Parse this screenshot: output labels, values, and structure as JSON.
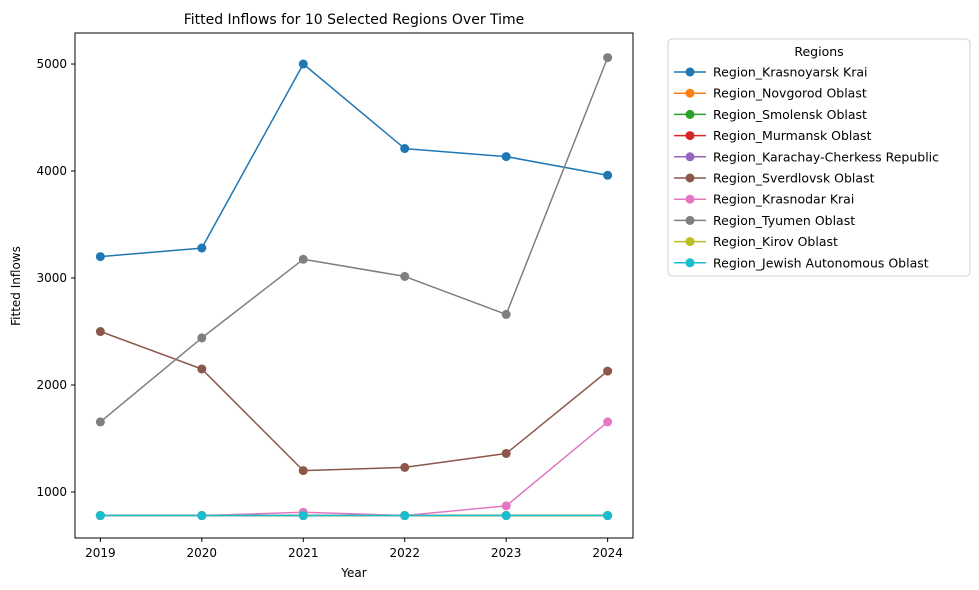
{
  "chart_data": {
    "type": "line",
    "title": "Fitted Inflows for 10 Selected Regions Over Time",
    "xlabel": "Year",
    "ylabel": "Fitted Inflows",
    "x": [
      2019,
      2020,
      2021,
      2022,
      2023,
      2024
    ],
    "x_ticks": [
      "2019",
      "2020",
      "2021",
      "2022",
      "2023",
      "2024"
    ],
    "y_ticks": [
      "1000",
      "2000",
      "3000",
      "4000",
      "5000"
    ],
    "xlim": [
      2018.75,
      2024.25
    ],
    "ylim": [
      570,
      5290
    ],
    "grid": false,
    "legend_title": "Regions",
    "legend_position": "outside-right",
    "series": [
      {
        "name": "Region_Krasnoyarsk Krai",
        "color": "#1f77b4",
        "values": [
          3200,
          3280,
          5000,
          4210,
          4135,
          3960
        ]
      },
      {
        "name": "Region_Novgorod Oblast",
        "color": "#ff7f0e",
        "values": [
          780,
          780,
          780,
          780,
          780,
          780
        ]
      },
      {
        "name": "Region_Smolensk Oblast",
        "color": "#2ca02c",
        "values": [
          780,
          780,
          780,
          780,
          780,
          780
        ]
      },
      {
        "name": "Region_Murmansk Oblast",
        "color": "#d62728",
        "values": [
          780,
          780,
          780,
          780,
          780,
          780
        ]
      },
      {
        "name": "Region_Karachay-Cherkess Republic",
        "color": "#9467bd",
        "values": [
          780,
          780,
          780,
          780,
          780,
          780
        ]
      },
      {
        "name": "Region_Sverdlovsk Oblast",
        "color": "#8c564b",
        "values": [
          2500,
          2150,
          1200,
          1230,
          1360,
          2130
        ]
      },
      {
        "name": "Region_Krasnodar Krai",
        "color": "#e377c2",
        "values": [
          780,
          780,
          810,
          780,
          870,
          1655
        ]
      },
      {
        "name": "Region_Tyumen Oblast",
        "color": "#7f7f7f",
        "values": [
          1655,
          2440,
          3175,
          3015,
          2660,
          5060
        ]
      },
      {
        "name": "Region_Kirov Oblast",
        "color": "#bcbd22",
        "values": [
          780,
          780,
          780,
          780,
          780,
          780
        ]
      },
      {
        "name": "Region_Jewish Autonomous Oblast",
        "color": "#17becf",
        "values": [
          780,
          780,
          780,
          780,
          780,
          780
        ]
      }
    ]
  }
}
